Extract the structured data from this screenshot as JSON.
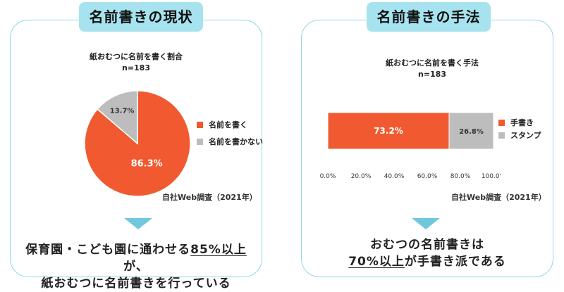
{
  "left": {
    "tab_title": "名前書きの現状",
    "chart_title_line1": "紙おむつに名前を書く割合",
    "chart_title_line2": "n=183",
    "source": "自社Web調査（2021年）",
    "conclusion_line1_pre": "保育園・こども園に通わせる",
    "conclusion_line1_emph": "85%以上",
    "conclusion_line1_post": "が、",
    "conclusion_line2": "紙おむつに名前書きを行っている"
  },
  "right": {
    "tab_title": "名前書きの手法",
    "chart_title_line1": "紙おむつに名前を書く手法",
    "chart_title_line2": "n=183",
    "source": "自社Web調査（2021年）",
    "conclusion_line1": "おむつの名前書きは",
    "conclusion_line2_emph": "70%以上",
    "conclusion_line2_post": "が手書き派である"
  },
  "chart_data": [
    {
      "type": "pie",
      "title": "紙おむつに名前を書く割合",
      "subtitle": "n=183",
      "labels": [
        "名前を書く",
        "名前を書かない"
      ],
      "values": [
        86.3,
        13.7
      ],
      "data_labels": [
        "86.3%",
        "13.7%"
      ],
      "colors": [
        "#f15a30",
        "#bdbdbd"
      ],
      "legend": "right"
    },
    {
      "type": "bar",
      "orientation": "horizontal",
      "stacked": true,
      "title": "紙おむつに名前を書く手法",
      "subtitle": "n=183",
      "series": [
        {
          "name": "手書き",
          "values": [
            73.2
          ],
          "label": "73.2%",
          "color": "#f15a30"
        },
        {
          "name": "スタンプ",
          "values": [
            26.8
          ],
          "label": "26.8%",
          "color": "#bdbdbd"
        }
      ],
      "xlim": [
        0,
        100
      ],
      "xticks": [
        "0.0%",
        "20.0%",
        "40.0%",
        "60.0%",
        "80.0%",
        "100.0%"
      ],
      "legend": "right"
    }
  ]
}
